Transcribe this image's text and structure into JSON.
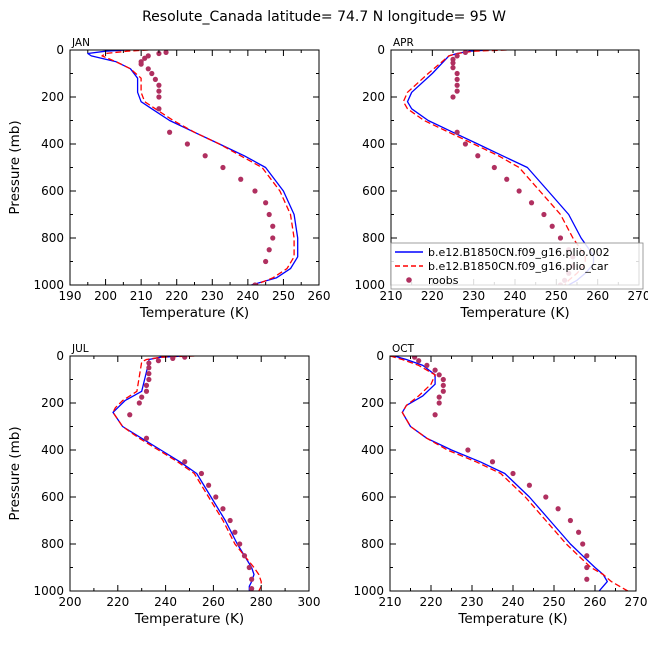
{
  "figure": {
    "title": "Resolute_Canada   latitude= 74.7 N longitude= 95 W"
  },
  "legend": {
    "placement": "inside APR panel, lower right",
    "entries": [
      {
        "label": "b.e12.B1850CN.f09_g16.plio.002",
        "style": "solid",
        "color": "#0000ff"
      },
      {
        "label": "b.e12.B1850CN.f09_g16.plio_car",
        "style": "dashed",
        "color": "#ff0000"
      },
      {
        "label": "roobs",
        "style": "dots",
        "color": "#b03060"
      }
    ]
  },
  "chart_data": [
    {
      "type": "line",
      "panel": "JAN",
      "xlabel": "Temperature (K)",
      "ylabel": "Pressure (mb)",
      "xlim": [
        190,
        260
      ],
      "ylim": [
        1000,
        0
      ],
      "xticks": [
        190,
        200,
        210,
        220,
        230,
        240,
        250,
        260
      ],
      "yticks": [
        0,
        200,
        400,
        600,
        800,
        1000
      ],
      "grid": false,
      "series": [
        {
          "name": "b.e12.B1850CN.f09_g16.plio.002",
          "style": "solid",
          "color": "#0000ff",
          "x": [
            206,
            200,
            195,
            196,
            203,
            207,
            209,
            209,
            210,
            213,
            218,
            225,
            232,
            239,
            245,
            250,
            253,
            254,
            254,
            252,
            248,
            241
          ],
          "y": [
            0,
            5,
            15,
            25,
            50,
            80,
            120,
            180,
            220,
            250,
            300,
            350,
            400,
            450,
            500,
            600,
            700,
            800,
            880,
            930,
            970,
            1000
          ]
        },
        {
          "name": "b.e12.B1850CN.f09_g16.plio_car",
          "style": "dashed",
          "color": "#ff0000",
          "x": [
            212,
            206,
            200,
            199,
            203,
            207,
            210,
            210,
            211,
            214,
            219,
            225,
            232,
            238,
            244,
            249,
            252,
            253,
            253,
            251,
            247,
            242
          ],
          "y": [
            0,
            5,
            15,
            25,
            50,
            80,
            120,
            180,
            220,
            250,
            300,
            350,
            400,
            450,
            500,
            600,
            700,
            800,
            880,
            930,
            970,
            1000
          ]
        },
        {
          "name": "roobs",
          "style": "dots",
          "color": "#b03060",
          "x": [
            217,
            215,
            212,
            211,
            210,
            210,
            212,
            213,
            214,
            215,
            215,
            215,
            215,
            218,
            223,
            228,
            233,
            238,
            242,
            245,
            246,
            247,
            247,
            246,
            245,
            242
          ],
          "y": [
            10,
            15,
            25,
            35,
            50,
            60,
            80,
            100,
            125,
            150,
            175,
            200,
            250,
            350,
            400,
            450,
            500,
            550,
            600,
            650,
            700,
            750,
            800,
            850,
            900,
            1000
          ]
        }
      ]
    },
    {
      "type": "line",
      "panel": "APR",
      "xlabel": "Temperature (K)",
      "ylabel": "",
      "xlim": [
        210,
        270
      ],
      "ylim": [
        1000,
        0
      ],
      "xticks": [
        210,
        220,
        230,
        240,
        250,
        260,
        270
      ],
      "yticks": [
        0,
        200,
        400,
        600,
        800,
        1000
      ],
      "grid": false,
      "series": [
        {
          "name": "b.e12.B1850CN.f09_g16.plio.002",
          "style": "solid",
          "color": "#0000ff",
          "x": [
            234,
            229,
            226,
            224,
            220,
            215,
            214,
            215,
            219,
            225,
            231,
            237,
            243,
            248,
            253,
            256,
            258,
            259,
            259,
            257,
            255,
            253
          ],
          "y": [
            0,
            5,
            15,
            25,
            100,
            180,
            220,
            250,
            300,
            350,
            400,
            450,
            500,
            600,
            700,
            800,
            850,
            880,
            910,
            950,
            980,
            1000
          ]
        },
        {
          "name": "b.e12.B1850CN.f09_g16.plio_car",
          "style": "dashed",
          "color": "#ff0000",
          "x": [
            238,
            230,
            226,
            224,
            219,
            214,
            213,
            214,
            218,
            224,
            230,
            236,
            241,
            246,
            251,
            254,
            256,
            257,
            257,
            255,
            253,
            252
          ],
          "y": [
            0,
            5,
            15,
            25,
            100,
            180,
            220,
            250,
            300,
            350,
            400,
            450,
            500,
            600,
            700,
            800,
            850,
            880,
            910,
            950,
            980,
            1000
          ]
        },
        {
          "name": "roobs",
          "style": "dots",
          "color": "#b03060",
          "x": [
            228,
            226,
            225,
            225,
            225,
            226,
            226,
            226,
            226,
            225,
            226,
            228,
            231,
            235,
            238,
            241,
            244,
            247,
            249,
            251,
            253,
            254,
            254,
            253,
            252,
            251
          ],
          "y": [
            10,
            25,
            40,
            55,
            75,
            100,
            125,
            150,
            175,
            200,
            350,
            400,
            450,
            500,
            550,
            600,
            650,
            700,
            750,
            800,
            850,
            880,
            920,
            950,
            980,
            1000
          ]
        }
      ]
    },
    {
      "type": "line",
      "panel": "JUL",
      "xlabel": "Temperature (K)",
      "ylabel": "Pressure (mb)",
      "xlim": [
        200,
        300
      ],
      "ylim": [
        1000,
        0
      ],
      "xticks": [
        200,
        220,
        240,
        260,
        280,
        300
      ],
      "yticks": [
        0,
        200,
        400,
        600,
        800,
        1000
      ],
      "grid": false,
      "series": [
        {
          "name": "b.e12.B1850CN.f09_g16.plio.002",
          "style": "solid",
          "color": "#0000ff",
          "x": [
            248,
            238,
            233,
            233,
            230,
            223,
            220,
            218,
            222,
            230,
            238,
            246,
            253,
            259,
            265,
            270,
            273,
            276,
            277,
            276,
            275,
            275
          ],
          "y": [
            0,
            5,
            15,
            25,
            150,
            190,
            220,
            240,
            300,
            350,
            400,
            450,
            500,
            600,
            700,
            800,
            850,
            900,
            930,
            960,
            980,
            1000
          ]
        },
        {
          "name": "b.e12.B1850CN.f09_g16.plio_car",
          "style": "dashed",
          "color": "#ff0000",
          "x": [
            252,
            238,
            232,
            230,
            228,
            222,
            219,
            218,
            222,
            229,
            237,
            245,
            252,
            258,
            264,
            269,
            273,
            277,
            279,
            280,
            280,
            279
          ],
          "y": [
            0,
            5,
            15,
            25,
            150,
            190,
            220,
            240,
            300,
            350,
            400,
            450,
            500,
            600,
            700,
            800,
            850,
            900,
            930,
            960,
            980,
            1000
          ]
        },
        {
          "name": "roobs",
          "style": "dots",
          "color": "#b03060",
          "x": [
            248,
            243,
            237,
            233,
            233,
            233,
            233,
            232,
            232,
            230,
            229,
            225,
            232,
            248,
            255,
            258,
            261,
            264,
            267,
            269,
            271,
            273,
            275,
            276,
            276
          ],
          "y": [
            5,
            10,
            20,
            30,
            50,
            75,
            100,
            125,
            150,
            175,
            200,
            250,
            350,
            450,
            500,
            550,
            600,
            650,
            700,
            750,
            800,
            850,
            900,
            950,
            990
          ]
        }
      ]
    },
    {
      "type": "line",
      "panel": "OCT",
      "xlabel": "Temperature (K)",
      "ylabel": "",
      "xlim": [
        210,
        270
      ],
      "ylim": [
        1000,
        0
      ],
      "xticks": [
        210,
        220,
        230,
        240,
        250,
        260,
        270
      ],
      "yticks": [
        0,
        200,
        400,
        600,
        800,
        1000
      ],
      "grid": false,
      "series": [
        {
          "name": "b.e12.B1850CN.f09_g16.plio.002",
          "style": "solid",
          "color": "#0000ff",
          "x": [
            211,
            214,
            218,
            221,
            221,
            218,
            214,
            213,
            215,
            219,
            225,
            232,
            238,
            244,
            249,
            254,
            257,
            260,
            262,
            263,
            262,
            261
          ],
          "y": [
            0,
            15,
            40,
            80,
            120,
            170,
            210,
            240,
            300,
            350,
            400,
            450,
            500,
            600,
            700,
            800,
            850,
            900,
            930,
            960,
            980,
            1000
          ]
        },
        {
          "name": "b.e12.B1850CN.f09_g16.plio_car",
          "style": "dashed",
          "color": "#ff0000",
          "x": [
            210,
            213,
            217,
            221,
            220,
            217,
            214,
            213,
            215,
            219,
            224,
            231,
            237,
            243,
            248,
            253,
            256,
            259,
            262,
            264,
            266,
            268
          ],
          "y": [
            0,
            15,
            40,
            80,
            120,
            170,
            210,
            240,
            300,
            350,
            400,
            450,
            500,
            600,
            700,
            800,
            850,
            900,
            930,
            960,
            980,
            1000
          ]
        },
        {
          "name": "roobs",
          "style": "dots",
          "color": "#b03060",
          "x": [
            216,
            217,
            219,
            221,
            222,
            223,
            223,
            223,
            222,
            222,
            221,
            229,
            235,
            240,
            244,
            248,
            251,
            254,
            256,
            257,
            258,
            258,
            258
          ],
          "y": [
            5,
            20,
            40,
            60,
            80,
            100,
            125,
            150,
            175,
            200,
            250,
            400,
            450,
            500,
            550,
            600,
            650,
            700,
            750,
            800,
            850,
            900,
            950
          ]
        }
      ]
    }
  ]
}
